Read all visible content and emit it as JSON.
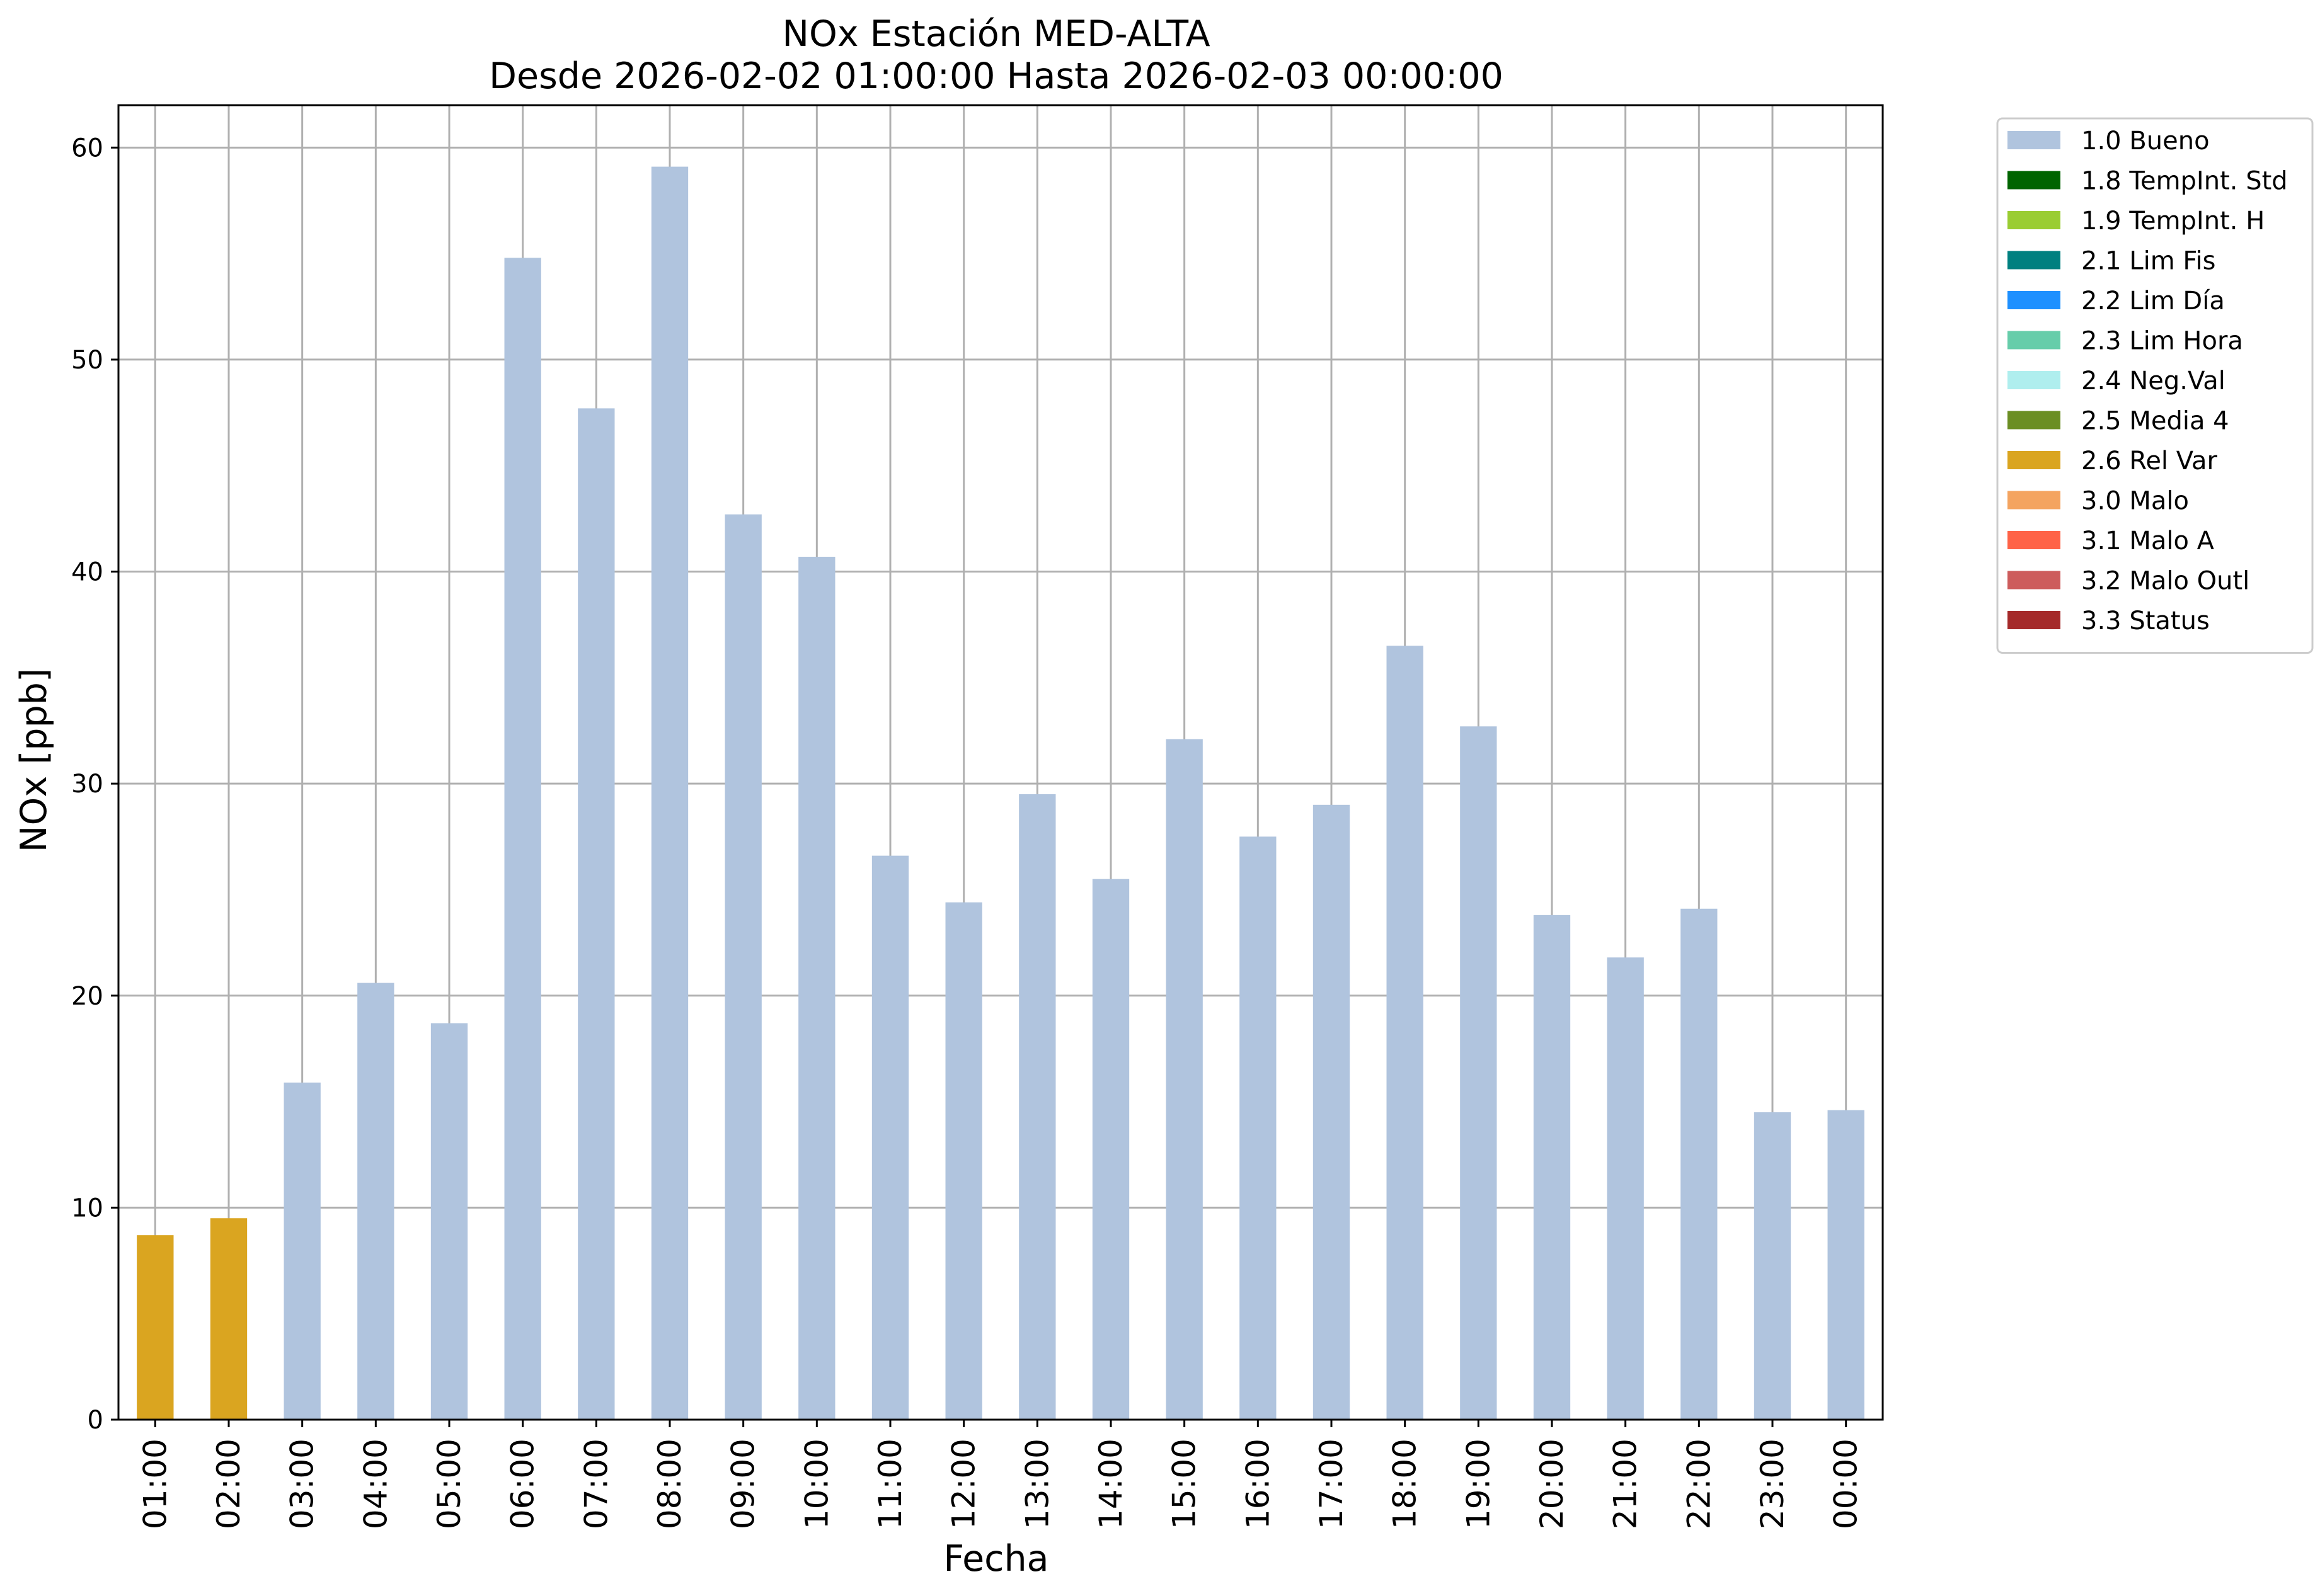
{
  "chart_data": {
    "type": "bar",
    "title": "NOx Estación MED-ALTA",
    "subtitle": "Desde 2026-02-02 01:00:00 Hasta 2026-02-03 00:00:00",
    "xlabel": "Fecha",
    "ylabel": "NOx [ppb]",
    "ylim": [
      0,
      62
    ],
    "yticks": [
      0,
      10,
      20,
      30,
      40,
      50,
      60
    ],
    "grid": true,
    "legend_position": "outside-top-right",
    "categories": [
      "01:00",
      "02:00",
      "03:00",
      "04:00",
      "05:00",
      "06:00",
      "07:00",
      "08:00",
      "09:00",
      "10:00",
      "11:00",
      "12:00",
      "13:00",
      "14:00",
      "15:00",
      "16:00",
      "17:00",
      "18:00",
      "19:00",
      "20:00",
      "21:00",
      "22:00",
      "23:00",
      "00:00"
    ],
    "values": [
      8.7,
      9.5,
      15.9,
      20.6,
      18.7,
      54.8,
      47.7,
      59.1,
      42.7,
      40.7,
      26.6,
      24.4,
      29.5,
      25.5,
      32.1,
      27.5,
      29.0,
      36.5,
      32.7,
      23.8,
      21.8,
      24.1,
      14.5,
      14.6
    ],
    "flags": [
      "2.6 Rel Var",
      "2.6 Rel Var",
      "1.0 Bueno",
      "1.0 Bueno",
      "1.0 Bueno",
      "1.0 Bueno",
      "1.0 Bueno",
      "1.0 Bueno",
      "1.0 Bueno",
      "1.0 Bueno",
      "1.0 Bueno",
      "1.0 Bueno",
      "1.0 Bueno",
      "1.0 Bueno",
      "1.0 Bueno",
      "1.0 Bueno",
      "1.0 Bueno",
      "1.0 Bueno",
      "1.0 Bueno",
      "1.0 Bueno",
      "1.0 Bueno",
      "1.0 Bueno",
      "1.0 Bueno",
      "1.0 Bueno"
    ],
    "legend": [
      {
        "label": "1.0 Bueno",
        "color": "#b0c4de"
      },
      {
        "label": "1.8 TempInt. Std",
        "color": "#006400"
      },
      {
        "label": "1.9 TempInt. H",
        "color": "#9acd32"
      },
      {
        "label": "2.1 Lim Fis",
        "color": "#008080"
      },
      {
        "label": "2.2 Lim Día",
        "color": "#1e90ff"
      },
      {
        "label": "2.3 Lim Hora",
        "color": "#66cdaa"
      },
      {
        "label": "2.4 Neg.Val",
        "color": "#afeeee"
      },
      {
        "label": "2.5 Media 4",
        "color": "#6b8e23"
      },
      {
        "label": "2.6 Rel Var",
        "color": "#daa520"
      },
      {
        "label": "3.0 Malo",
        "color": "#f4a460"
      },
      {
        "label": "3.1 Malo A",
        "color": "#ff6347"
      },
      {
        "label": "3.2 Malo Outl",
        "color": "#cd5c5c"
      },
      {
        "label": "3.3 Status",
        "color": "#a52a2a"
      }
    ]
  }
}
